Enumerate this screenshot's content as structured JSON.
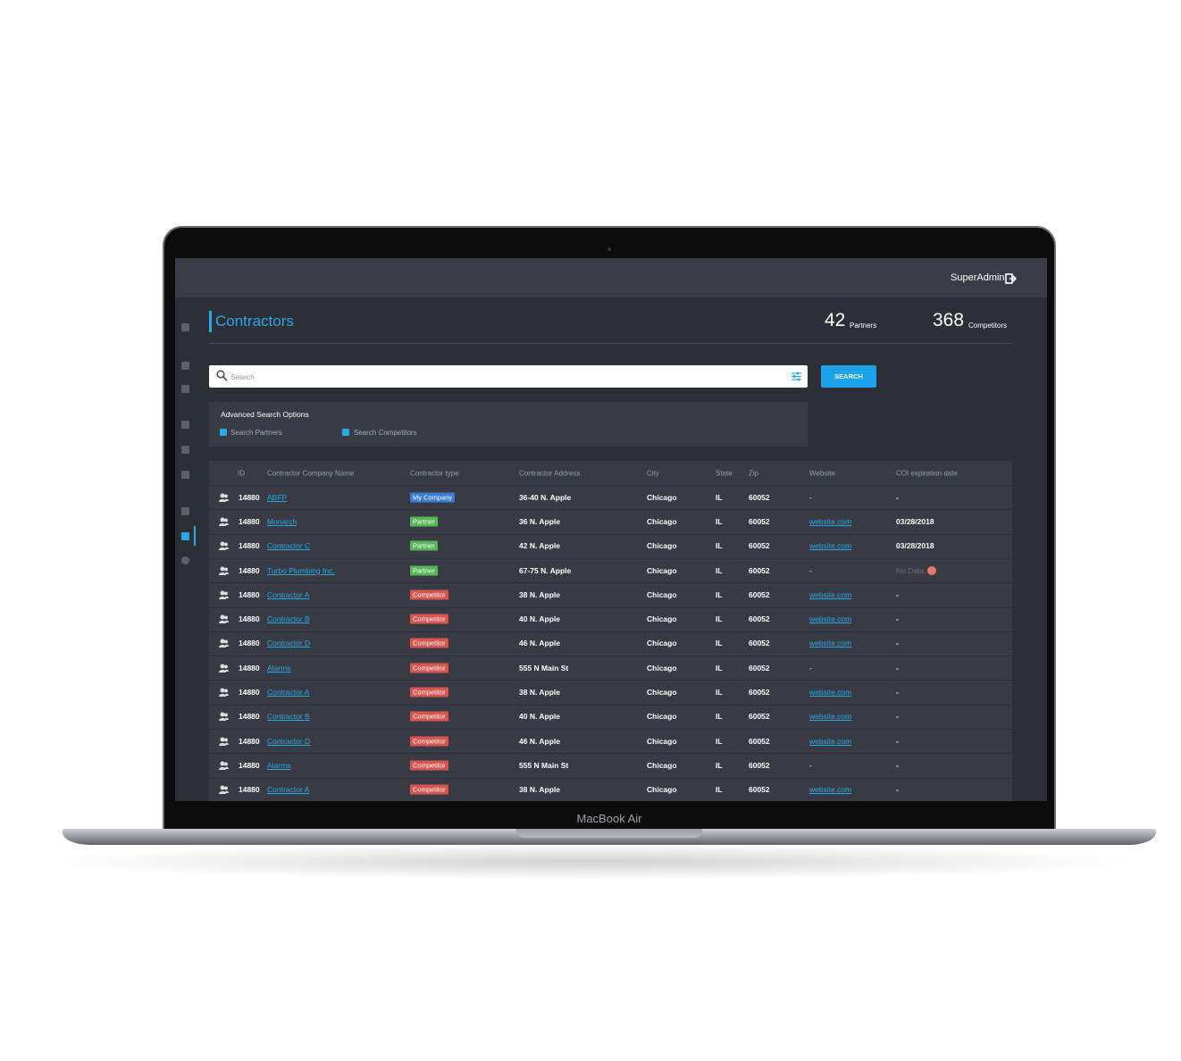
{
  "device": {
    "label": "MacBook Air"
  },
  "header": {
    "user": "SuperAdmin"
  },
  "page": {
    "title": "Contractors",
    "stats": [
      {
        "value": "42",
        "label": "Partners"
      },
      {
        "value": "368",
        "label": "Competitors"
      }
    ]
  },
  "search": {
    "placeholder": "Search",
    "button": "SEARCH"
  },
  "advanced": {
    "title": "Advanced Search Options",
    "options": [
      "Search Partners",
      "Search Competitors"
    ]
  },
  "table": {
    "columns": [
      "ID",
      "Contractor Company Name",
      "Contractor type",
      "Contractor Address",
      "City",
      "State",
      "Zip",
      "Website",
      "COI expiration date"
    ],
    "type_colors": {
      "My Company": "#3a7bd5",
      "Partner": "#58b55a",
      "Competitor": "#d9534f"
    },
    "rows": [
      {
        "id": "14880",
        "name": "ABFP",
        "type": "My Company",
        "address": "36-40 N. Apple",
        "city": "Chicago",
        "state": "IL",
        "zip": "60052",
        "website": "-",
        "coi": "-"
      },
      {
        "id": "14880",
        "name": "Monarch",
        "type": "Partner",
        "address": "36 N. Apple",
        "city": "Chicago",
        "state": "IL",
        "zip": "60052",
        "website": "website.com",
        "coi": "03/28/2018"
      },
      {
        "id": "14880",
        "name": "Contractor C",
        "type": "Partner",
        "address": "42 N. Apple",
        "city": "Chicago",
        "state": "IL",
        "zip": "60052",
        "website": "website.com",
        "coi": "03/28/2018"
      },
      {
        "id": "14880",
        "name": "Turbo Plumbing Inc.",
        "type": "Partner",
        "address": "67-75 N. Apple",
        "city": "Chicago",
        "state": "IL",
        "zip": "60052",
        "website": "-",
        "coi": "No Data",
        "coi_alert": true
      },
      {
        "id": "14880",
        "name": "Contractor A",
        "type": "Competitor",
        "address": "38 N. Apple",
        "city": "Chicago",
        "state": "IL",
        "zip": "60052",
        "website": "website.com",
        "coi": "-"
      },
      {
        "id": "14880",
        "name": "Contractor B",
        "type": "Competitor",
        "address": "40 N. Apple",
        "city": "Chicago",
        "state": "IL",
        "zip": "60052",
        "website": "website.com",
        "coi": "-"
      },
      {
        "id": "14880",
        "name": "Contractor D",
        "type": "Competitor",
        "address": "46 N. Apple",
        "city": "Chicago",
        "state": "IL",
        "zip": "60052",
        "website": "website.com",
        "coi": "-"
      },
      {
        "id": "14880",
        "name": "Alarms",
        "type": "Competitor",
        "address": "555 N Main St",
        "city": "Chicago",
        "state": "IL",
        "zip": "60052",
        "website": "-",
        "coi": "-"
      },
      {
        "id": "14880",
        "name": "Contractor A",
        "type": "Competitor",
        "address": "38 N. Apple",
        "city": "Chicago",
        "state": "IL",
        "zip": "60052",
        "website": "website.com",
        "coi": "-"
      },
      {
        "id": "14880",
        "name": "Contractor B",
        "type": "Competitor",
        "address": "40 N. Apple",
        "city": "Chicago",
        "state": "IL",
        "zip": "60052",
        "website": "website.com",
        "coi": "-"
      },
      {
        "id": "14880",
        "name": "Contractor D",
        "type": "Competitor",
        "address": "46 N. Apple",
        "city": "Chicago",
        "state": "IL",
        "zip": "60052",
        "website": "website.com",
        "coi": "-"
      },
      {
        "id": "14880",
        "name": "Alarms",
        "type": "Competitor",
        "address": "555 N Main St",
        "city": "Chicago",
        "state": "IL",
        "zip": "60052",
        "website": "-",
        "coi": "-"
      },
      {
        "id": "14880",
        "name": "Contractor A",
        "type": "Competitor",
        "address": "38 N. Apple",
        "city": "Chicago",
        "state": "IL",
        "zip": "60052",
        "website": "website.com",
        "coi": "-"
      }
    ]
  }
}
